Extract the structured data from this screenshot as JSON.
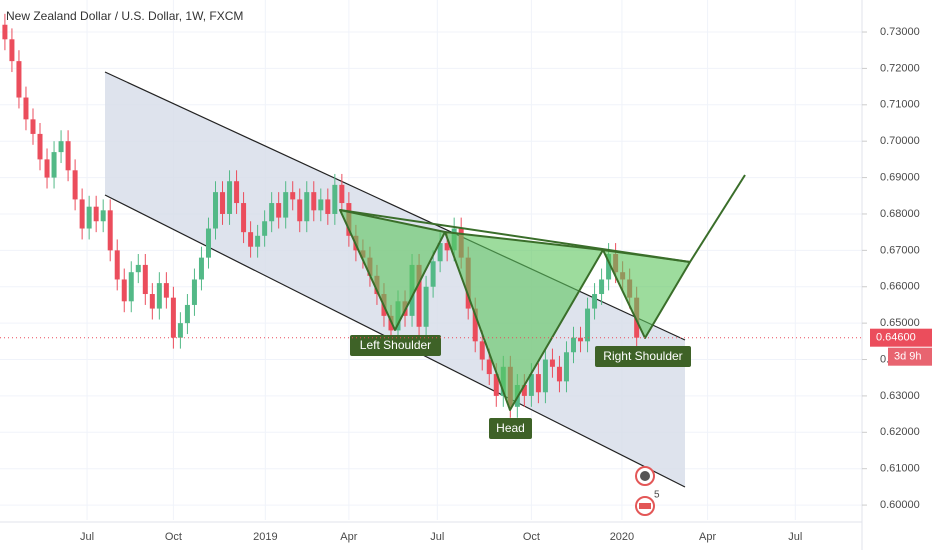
{
  "chart_data": {
    "type": "candlestick",
    "title": "New Zealand Dollar / U.S. Dollar, 1W, FXCM",
    "up_color": "#53b987",
    "down_color": "#eb4d5c",
    "candles": [
      [
        0.732,
        0.735,
        0.725,
        0.728
      ],
      [
        0.728,
        0.731,
        0.719,
        0.722
      ],
      [
        0.722,
        0.725,
        0.709,
        0.712
      ],
      [
        0.712,
        0.715,
        0.703,
        0.706
      ],
      [
        0.706,
        0.709,
        0.699,
        0.702
      ],
      [
        0.702,
        0.705,
        0.692,
        0.695
      ],
      [
        0.695,
        0.698,
        0.687,
        0.69
      ],
      [
        0.69,
        0.7,
        0.687,
        0.697
      ],
      [
        0.697,
        0.703,
        0.694,
        0.7
      ],
      [
        0.7,
        0.703,
        0.689,
        0.692
      ],
      [
        0.692,
        0.695,
        0.681,
        0.684
      ],
      [
        0.684,
        0.687,
        0.673,
        0.676
      ],
      [
        0.676,
        0.685,
        0.673,
        0.682
      ],
      [
        0.682,
        0.685,
        0.675,
        0.678
      ],
      [
        0.678,
        0.684,
        0.675,
        0.681
      ],
      [
        0.681,
        0.684,
        0.667,
        0.67
      ],
      [
        0.67,
        0.673,
        0.659,
        0.662
      ],
      [
        0.662,
        0.665,
        0.653,
        0.656
      ],
      [
        0.656,
        0.667,
        0.653,
        0.664
      ],
      [
        0.664,
        0.669,
        0.661,
        0.666
      ],
      [
        0.666,
        0.669,
        0.655,
        0.658
      ],
      [
        0.658,
        0.661,
        0.651,
        0.654
      ],
      [
        0.654,
        0.664,
        0.651,
        0.661
      ],
      [
        0.661,
        0.664,
        0.654,
        0.657
      ],
      [
        0.657,
        0.66,
        0.643,
        0.646
      ],
      [
        0.646,
        0.653,
        0.643,
        0.65
      ],
      [
        0.65,
        0.658,
        0.647,
        0.655
      ],
      [
        0.655,
        0.665,
        0.652,
        0.662
      ],
      [
        0.662,
        0.671,
        0.659,
        0.668
      ],
      [
        0.668,
        0.679,
        0.665,
        0.676
      ],
      [
        0.676,
        0.689,
        0.673,
        0.686
      ],
      [
        0.686,
        0.689,
        0.677,
        0.68
      ],
      [
        0.68,
        0.692,
        0.677,
        0.689
      ],
      [
        0.689,
        0.692,
        0.68,
        0.683
      ],
      [
        0.683,
        0.686,
        0.672,
        0.675
      ],
      [
        0.675,
        0.678,
        0.668,
        0.671
      ],
      [
        0.671,
        0.677,
        0.668,
        0.674
      ],
      [
        0.674,
        0.681,
        0.671,
        0.678
      ],
      [
        0.678,
        0.686,
        0.675,
        0.683
      ],
      [
        0.683,
        0.686,
        0.676,
        0.679
      ],
      [
        0.679,
        0.689,
        0.676,
        0.686
      ],
      [
        0.686,
        0.689,
        0.681,
        0.684
      ],
      [
        0.684,
        0.687,
        0.675,
        0.678
      ],
      [
        0.678,
        0.689,
        0.675,
        0.686
      ],
      [
        0.686,
        0.689,
        0.678,
        0.681
      ],
      [
        0.681,
        0.687,
        0.678,
        0.684
      ],
      [
        0.684,
        0.687,
        0.677,
        0.68
      ],
      [
        0.68,
        0.691,
        0.677,
        0.688
      ],
      [
        0.688,
        0.691,
        0.68,
        0.683
      ],
      [
        0.683,
        0.686,
        0.671,
        0.674
      ],
      [
        0.674,
        0.677,
        0.667,
        0.67
      ],
      [
        0.67,
        0.673,
        0.665,
        0.668
      ],
      [
        0.668,
        0.671,
        0.66,
        0.663
      ],
      [
        0.663,
        0.666,
        0.655,
        0.658
      ],
      [
        0.658,
        0.661,
        0.649,
        0.652
      ],
      [
        0.652,
        0.655,
        0.645,
        0.648
      ],
      [
        0.648,
        0.659,
        0.645,
        0.656
      ],
      [
        0.656,
        0.659,
        0.649,
        0.652
      ],
      [
        0.652,
        0.669,
        0.649,
        0.666
      ],
      [
        0.666,
        0.669,
        0.646,
        0.649
      ],
      [
        0.649,
        0.663,
        0.646,
        0.66
      ],
      [
        0.66,
        0.67,
        0.657,
        0.667
      ],
      [
        0.667,
        0.675,
        0.664,
        0.672
      ],
      [
        0.672,
        0.675,
        0.667,
        0.67
      ],
      [
        0.67,
        0.679,
        0.667,
        0.676
      ],
      [
        0.676,
        0.679,
        0.665,
        0.668
      ],
      [
        0.668,
        0.671,
        0.651,
        0.654
      ],
      [
        0.654,
        0.657,
        0.642,
        0.645
      ],
      [
        0.645,
        0.648,
        0.637,
        0.64
      ],
      [
        0.64,
        0.643,
        0.633,
        0.636
      ],
      [
        0.636,
        0.639,
        0.627,
        0.63
      ],
      [
        0.63,
        0.641,
        0.627,
        0.638
      ],
      [
        0.638,
        0.641,
        0.624,
        0.627
      ],
      [
        0.627,
        0.636,
        0.624,
        0.633
      ],
      [
        0.633,
        0.636,
        0.627,
        0.63
      ],
      [
        0.63,
        0.639,
        0.627,
        0.636
      ],
      [
        0.636,
        0.639,
        0.628,
        0.631
      ],
      [
        0.631,
        0.643,
        0.628,
        0.64
      ],
      [
        0.64,
        0.643,
        0.635,
        0.638
      ],
      [
        0.638,
        0.641,
        0.631,
        0.634
      ],
      [
        0.634,
        0.645,
        0.631,
        0.642
      ],
      [
        0.642,
        0.649,
        0.639,
        0.646
      ],
      [
        0.646,
        0.649,
        0.642,
        0.645
      ],
      [
        0.645,
        0.657,
        0.642,
        0.654
      ],
      [
        0.654,
        0.661,
        0.651,
        0.658
      ],
      [
        0.658,
        0.665,
        0.655,
        0.662
      ],
      [
        0.662,
        0.672,
        0.659,
        0.669
      ],
      [
        0.669,
        0.672,
        0.661,
        0.664
      ],
      [
        0.664,
        0.667,
        0.659,
        0.662
      ],
      [
        0.662,
        0.665,
        0.654,
        0.657
      ],
      [
        0.657,
        0.66,
        0.643,
        0.646
      ]
    ],
    "xlim": [
      -0.7,
      122.1
    ],
    "xticks": [
      {
        "value": 11.7,
        "label": "Jul"
      },
      {
        "value": 24,
        "label": "Oct"
      },
      {
        "value": 37.1,
        "label": "2019"
      },
      {
        "value": 49,
        "label": "Apr"
      },
      {
        "value": 61.6,
        "label": "Jul"
      },
      {
        "value": 75,
        "label": "Oct"
      },
      {
        "value": 87.9,
        "label": "2020"
      },
      {
        "value": 100.1,
        "label": "Apr"
      },
      {
        "value": 112.6,
        "label": "Jul"
      }
    ],
    "ylim": [
      0.5959,
      0.7388
    ],
    "yticks": [
      {
        "value": 0.6,
        "label": "0.60000"
      },
      {
        "value": 0.61,
        "label": "0.61000"
      },
      {
        "value": 0.62,
        "label": "0.62000"
      },
      {
        "value": 0.63,
        "label": "0.63000"
      },
      {
        "value": 0.64,
        "label": "0.64000"
      },
      {
        "value": 0.65,
        "label": "0.65000"
      },
      {
        "value": 0.66,
        "label": "0.66000"
      },
      {
        "value": 0.67,
        "label": "0.67000"
      },
      {
        "value": 0.68,
        "label": "0.68000"
      },
      {
        "value": 0.69,
        "label": "0.69000"
      },
      {
        "value": 0.7,
        "label": "0.70000"
      },
      {
        "value": 0.71,
        "label": "0.71000"
      },
      {
        "value": 0.72,
        "label": "0.72000"
      },
      {
        "value": 0.73,
        "label": "0.73000"
      }
    ],
    "last_price": {
      "value": 0.646,
      "label": "0.64600"
    },
    "countdown": "3d 9h",
    "annotations": [
      "Left Shoulder",
      "Head",
      "Right Shoulder"
    ],
    "event_count": "5"
  }
}
